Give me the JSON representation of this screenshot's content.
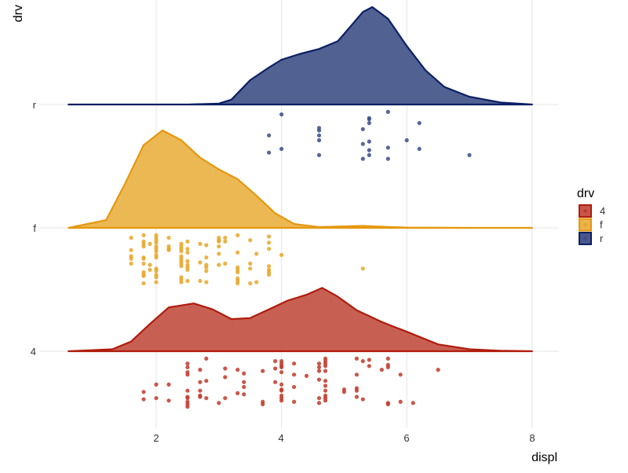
{
  "chart_data": {
    "type": "raincloud",
    "xlabel": "displ",
    "ylabel": "drv",
    "xlim": [
      0.6,
      8.4
    ],
    "x_ticks": [
      "2",
      "4",
      "6",
      "8"
    ],
    "x_tick_values": [
      2,
      4,
      6,
      8
    ],
    "categories": [
      "4",
      "f",
      "r"
    ],
    "grid": "vertical major gridlines + category baselines",
    "legend": {
      "title": "drv",
      "position": "right",
      "entries": [
        "4",
        "f",
        "r"
      ]
    },
    "series": [
      {
        "name": "4",
        "fill": "#c4574a",
        "stroke": "#b01c0c",
        "point": "#c0392b",
        "density_x": [
          0.6,
          1.3,
          1.6,
          1.9,
          2.2,
          2.6,
          2.9,
          3.2,
          3.5,
          3.8,
          4.1,
          4.4,
          4.65,
          4.9,
          5.2,
          5.6,
          6.0,
          6.5,
          7.0,
          7.5,
          8.0
        ],
        "density_height": [
          0,
          0.02,
          0.1,
          0.28,
          0.45,
          0.49,
          0.43,
          0.33,
          0.34,
          0.43,
          0.52,
          0.58,
          0.65,
          0.56,
          0.42,
          0.3,
          0.2,
          0.07,
          0.02,
          0.005,
          0
        ],
        "points": [
          [
            1.8,
            -0.33
          ],
          [
            1.8,
            -0.39
          ],
          [
            2.0,
            -0.27
          ],
          [
            2.0,
            -0.38
          ],
          [
            2.2,
            -0.27
          ],
          [
            2.2,
            -0.4
          ],
          [
            2.5,
            -0.1
          ],
          [
            2.5,
            -0.13
          ],
          [
            2.5,
            -0.17
          ],
          [
            2.5,
            -0.19
          ],
          [
            2.5,
            -0.32
          ],
          [
            2.5,
            -0.37
          ],
          [
            2.5,
            -0.38
          ],
          [
            2.5,
            -0.41
          ],
          [
            2.5,
            -0.43
          ],
          [
            2.5,
            -0.45
          ],
          [
            2.7,
            -0.15
          ],
          [
            2.7,
            -0.25
          ],
          [
            2.7,
            -0.32
          ],
          [
            2.7,
            -0.36
          ],
          [
            2.7,
            -0.37
          ],
          [
            2.8,
            -0.06
          ],
          [
            2.8,
            -0.24
          ],
          [
            2.8,
            -0.38
          ],
          [
            3.0,
            -0.42
          ],
          [
            3.1,
            -0.14
          ],
          [
            3.1,
            -0.21
          ],
          [
            3.1,
            -0.38
          ],
          [
            3.3,
            -0.15
          ],
          [
            3.3,
            -0.34
          ],
          [
            3.4,
            -0.18
          ],
          [
            3.4,
            -0.25
          ],
          [
            3.4,
            -0.29
          ],
          [
            3.4,
            -0.35
          ],
          [
            3.7,
            -0.16
          ],
          [
            3.7,
            -0.41
          ],
          [
            3.7,
            -0.43
          ],
          [
            3.9,
            -0.08
          ],
          [
            3.9,
            -0.14
          ],
          [
            3.9,
            -0.25
          ],
          [
            4.0,
            -0.08
          ],
          [
            4.0,
            -0.1
          ],
          [
            4.0,
            -0.12
          ],
          [
            4.0,
            -0.13
          ],
          [
            4.0,
            -0.17
          ],
          [
            4.0,
            -0.27
          ],
          [
            4.0,
            -0.31
          ],
          [
            4.0,
            -0.32
          ],
          [
            4.0,
            -0.36
          ],
          [
            4.0,
            -0.38
          ],
          [
            4.0,
            -0.4
          ],
          [
            4.2,
            -0.1
          ],
          [
            4.2,
            -0.19
          ],
          [
            4.2,
            -0.29
          ],
          [
            4.2,
            -0.41
          ],
          [
            4.4,
            -0.2
          ],
          [
            4.6,
            -0.1
          ],
          [
            4.6,
            -0.13
          ],
          [
            4.6,
            -0.16
          ],
          [
            4.6,
            -0.23
          ],
          [
            4.6,
            -0.38
          ],
          [
            4.6,
            -0.42
          ],
          [
            4.7,
            -0.06
          ],
          [
            4.7,
            -0.08
          ],
          [
            4.7,
            -0.1
          ],
          [
            4.7,
            -0.12
          ],
          [
            4.7,
            -0.16
          ],
          [
            4.7,
            -0.24
          ],
          [
            4.7,
            -0.28
          ],
          [
            4.7,
            -0.32
          ],
          [
            4.7,
            -0.36
          ],
          [
            4.7,
            -0.38
          ],
          [
            4.7,
            -0.4
          ],
          [
            5.0,
            -0.31
          ],
          [
            5.0,
            -0.33
          ],
          [
            5.2,
            -0.06
          ],
          [
            5.2,
            -0.19
          ],
          [
            5.2,
            -0.3
          ],
          [
            5.2,
            -0.32
          ],
          [
            5.2,
            -0.37
          ],
          [
            5.3,
            -0.08
          ],
          [
            5.3,
            -0.39
          ],
          [
            5.4,
            -0.07
          ],
          [
            5.4,
            -0.12
          ],
          [
            5.6,
            -0.15
          ],
          [
            5.7,
            -0.06
          ],
          [
            5.7,
            -0.11
          ],
          [
            5.7,
            -0.13
          ],
          [
            5.7,
            -0.42
          ],
          [
            5.7,
            -0.43
          ],
          [
            5.9,
            -0.19
          ],
          [
            5.9,
            -0.41
          ],
          [
            6.1,
            -0.42
          ],
          [
            6.5,
            -0.15
          ]
        ]
      },
      {
        "name": "f",
        "fill": "#ebb44a",
        "stroke": "#e5980f",
        "point": "#e8a628",
        "density_x": [
          0.6,
          1.2,
          1.5,
          1.8,
          2.1,
          2.4,
          2.7,
          3.0,
          3.3,
          3.6,
          3.9,
          4.2,
          4.6,
          5.0,
          5.3,
          5.7,
          6.0,
          7.0,
          8.0
        ],
        "density_height": [
          0,
          0.08,
          0.45,
          0.85,
          1.0,
          0.9,
          0.72,
          0.6,
          0.5,
          0.33,
          0.15,
          0.04,
          0.008,
          0.015,
          0.02,
          0.01,
          0.003,
          0,
          0
        ],
        "points": [
          [
            1.6,
            -0.08
          ],
          [
            1.6,
            -0.18
          ],
          [
            1.6,
            -0.23
          ],
          [
            1.6,
            -0.25
          ],
          [
            1.6,
            -0.29
          ],
          [
            1.8,
            -0.06
          ],
          [
            1.8,
            -0.11
          ],
          [
            1.8,
            -0.13
          ],
          [
            1.8,
            -0.15
          ],
          [
            1.8,
            -0.24
          ],
          [
            1.8,
            -0.25
          ],
          [
            1.8,
            -0.29
          ],
          [
            1.8,
            -0.36
          ],
          [
            1.8,
            -0.38
          ],
          [
            1.8,
            -0.39
          ],
          [
            1.8,
            -0.45
          ],
          [
            1.9,
            -0.13
          ],
          [
            1.9,
            -0.3
          ],
          [
            1.9,
            -0.34
          ],
          [
            2.0,
            -0.06
          ],
          [
            2.0,
            -0.08
          ],
          [
            2.0,
            -0.1
          ],
          [
            2.0,
            -0.12
          ],
          [
            2.0,
            -0.15
          ],
          [
            2.0,
            -0.17
          ],
          [
            2.0,
            -0.19
          ],
          [
            2.0,
            -0.22
          ],
          [
            2.0,
            -0.24
          ],
          [
            2.0,
            -0.33
          ],
          [
            2.0,
            -0.35
          ],
          [
            2.0,
            -0.38
          ],
          [
            2.0,
            -0.4
          ],
          [
            2.0,
            -0.44
          ],
          [
            2.2,
            -0.08
          ],
          [
            2.2,
            -0.15
          ],
          [
            2.2,
            -0.17
          ],
          [
            2.2,
            -0.18
          ],
          [
            2.4,
            -0.13
          ],
          [
            2.4,
            -0.15
          ],
          [
            2.4,
            -0.17
          ],
          [
            2.4,
            -0.19
          ],
          [
            2.4,
            -0.23
          ],
          [
            2.4,
            -0.25
          ],
          [
            2.4,
            -0.27
          ],
          [
            2.4,
            -0.29
          ],
          [
            2.4,
            -0.31
          ],
          [
            2.4,
            -0.4
          ],
          [
            2.4,
            -0.42
          ],
          [
            2.4,
            -0.44
          ],
          [
            2.5,
            -0.11
          ],
          [
            2.5,
            -0.17
          ],
          [
            2.5,
            -0.2
          ],
          [
            2.5,
            -0.27
          ],
          [
            2.5,
            -0.3
          ],
          [
            2.5,
            -0.32
          ],
          [
            2.5,
            -0.34
          ],
          [
            2.5,
            -0.43
          ],
          [
            2.7,
            -0.13
          ],
          [
            2.7,
            -0.28
          ],
          [
            2.7,
            -0.43
          ],
          [
            2.8,
            -0.14
          ],
          [
            2.8,
            -0.24
          ],
          [
            2.8,
            -0.3
          ],
          [
            2.8,
            -0.32
          ],
          [
            2.8,
            -0.35
          ],
          [
            2.8,
            -0.44
          ],
          [
            3.0,
            -0.08
          ],
          [
            3.0,
            -0.1
          ],
          [
            3.0,
            -0.11
          ],
          [
            3.0,
            -0.15
          ],
          [
            3.0,
            -0.21
          ],
          [
            3.0,
            -0.3
          ],
          [
            3.1,
            -0.08
          ],
          [
            3.1,
            -0.11
          ],
          [
            3.1,
            -0.29
          ],
          [
            3.3,
            -0.06
          ],
          [
            3.3,
            -0.2
          ],
          [
            3.3,
            -0.32
          ],
          [
            3.3,
            -0.34
          ],
          [
            3.3,
            -0.36
          ],
          [
            3.3,
            -0.41
          ],
          [
            3.3,
            -0.43
          ],
          [
            3.3,
            -0.45
          ],
          [
            3.5,
            -0.1
          ],
          [
            3.5,
            -0.29
          ],
          [
            3.5,
            -0.33
          ],
          [
            3.5,
            -0.45
          ],
          [
            3.6,
            -0.21
          ],
          [
            3.6,
            -0.44
          ],
          [
            3.8,
            -0.07
          ],
          [
            3.8,
            -0.12
          ],
          [
            3.8,
            -0.17
          ],
          [
            3.8,
            -0.31
          ],
          [
            3.8,
            -0.34
          ],
          [
            3.8,
            -0.36
          ],
          [
            3.8,
            -0.38
          ],
          [
            4.0,
            -0.22
          ],
          [
            5.3,
            -0.33
          ]
        ]
      },
      {
        "name": "r",
        "fill": "#48588c",
        "stroke": "#0c2064",
        "point": "#3a4c88",
        "density_x": [
          0.6,
          2.5,
          3.0,
          3.2,
          3.5,
          3.8,
          4.0,
          4.3,
          4.6,
          4.9,
          5.1,
          5.3,
          5.45,
          5.7,
          6.0,
          6.3,
          6.6,
          7.0,
          7.5,
          8.0
        ],
        "density_height": [
          0,
          0,
          0.01,
          0.05,
          0.25,
          0.38,
          0.46,
          0.52,
          0.57,
          0.65,
          0.8,
          0.95,
          1.0,
          0.88,
          0.6,
          0.35,
          0.18,
          0.08,
          0.02,
          0
        ],
        "points": [
          [
            4.0,
            -0.08
          ],
          [
            3.8,
            -0.25
          ],
          [
            3.8,
            -0.39
          ],
          [
            4.0,
            -0.36
          ],
          [
            4.6,
            -0.19
          ],
          [
            4.6,
            -0.21
          ],
          [
            4.6,
            -0.25
          ],
          [
            4.6,
            -0.29
          ],
          [
            4.6,
            -0.41
          ],
          [
            5.3,
            -0.2
          ],
          [
            5.4,
            -0.11
          ],
          [
            5.4,
            -0.12
          ],
          [
            5.4,
            -0.15
          ],
          [
            5.4,
            -0.3
          ],
          [
            5.3,
            -0.32
          ],
          [
            5.4,
            -0.37
          ],
          [
            5.4,
            -0.41
          ],
          [
            5.3,
            -0.44
          ],
          [
            5.7,
            -0.06
          ],
          [
            5.7,
            -0.35
          ],
          [
            5.7,
            -0.44
          ],
          [
            6.0,
            -0.29
          ],
          [
            6.2,
            -0.15
          ],
          [
            6.2,
            -0.36
          ],
          [
            7.0,
            -0.41
          ]
        ]
      }
    ]
  }
}
